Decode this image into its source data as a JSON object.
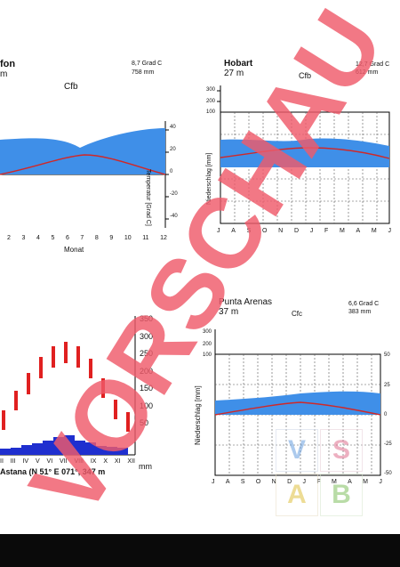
{
  "panels": {
    "top_left": {
      "station": "fon",
      "elevation": "m",
      "koppen": "Cfb",
      "stat_temp": "8,7 Grad C",
      "stat_precip": "758 mm",
      "y_right_label": "Temperatur [Grad C]",
      "y_right_ticks": [
        "40",
        "20",
        "0",
        "-20",
        "-40"
      ],
      "x_ticks": [
        "2",
        "3",
        "4",
        "5",
        "6",
        "7",
        "8",
        "9",
        "10",
        "11",
        "12"
      ],
      "x_label": "Monat"
    },
    "top_right": {
      "station": "Hobart",
      "elevation": "27 m",
      "koppen": "Cfb",
      "stat_temp": "12,7 Grad C",
      "stat_precip": "612 mm",
      "y_left_ticks": [
        "300",
        "200",
        "100"
      ],
      "y_left_label": "Niederschlag [mm]",
      "x_ticks": [
        "J",
        "A",
        "S",
        "O",
        "N",
        "D",
        "J",
        "F",
        "M",
        "A",
        "M",
        "J"
      ]
    },
    "bottom_left": {
      "y_ticks": [
        "350",
        "300",
        "250",
        "200",
        "150",
        "100",
        "50"
      ],
      "x_ticks": [
        "II",
        "III",
        "IV",
        "V",
        "VI",
        "VII",
        "VIII",
        "IX",
        "X",
        "XI",
        "XII"
      ],
      "unit": "mm",
      "caption": "Astana (N 51° E 071°, 347 m"
    },
    "bottom_right": {
      "station": "Punta Arenas",
      "elevation": "37 m",
      "koppen": "Cfc",
      "stat_temp": "6,6 Grad C",
      "stat_precip": "383 mm",
      "y_left_ticks": [
        "300",
        "200",
        "100"
      ],
      "y_left_label": "Niederschlag [mm]",
      "y_right_ticks": [
        "50",
        "25",
        "0",
        "-25",
        "-50"
      ],
      "x_ticks": [
        "J",
        "A",
        "S",
        "O",
        "N",
        "D",
        "J",
        "F",
        "M",
        "A",
        "M",
        "J"
      ]
    }
  },
  "watermark": "VORSCHAU",
  "logo_letters": [
    "V",
    "S",
    "A",
    "B"
  ],
  "colors": {
    "precip_fill": "#3f8fe8",
    "temp_line": "#d02828",
    "watermark": "#ef5a6a",
    "footer": "#0a0a0a"
  }
}
